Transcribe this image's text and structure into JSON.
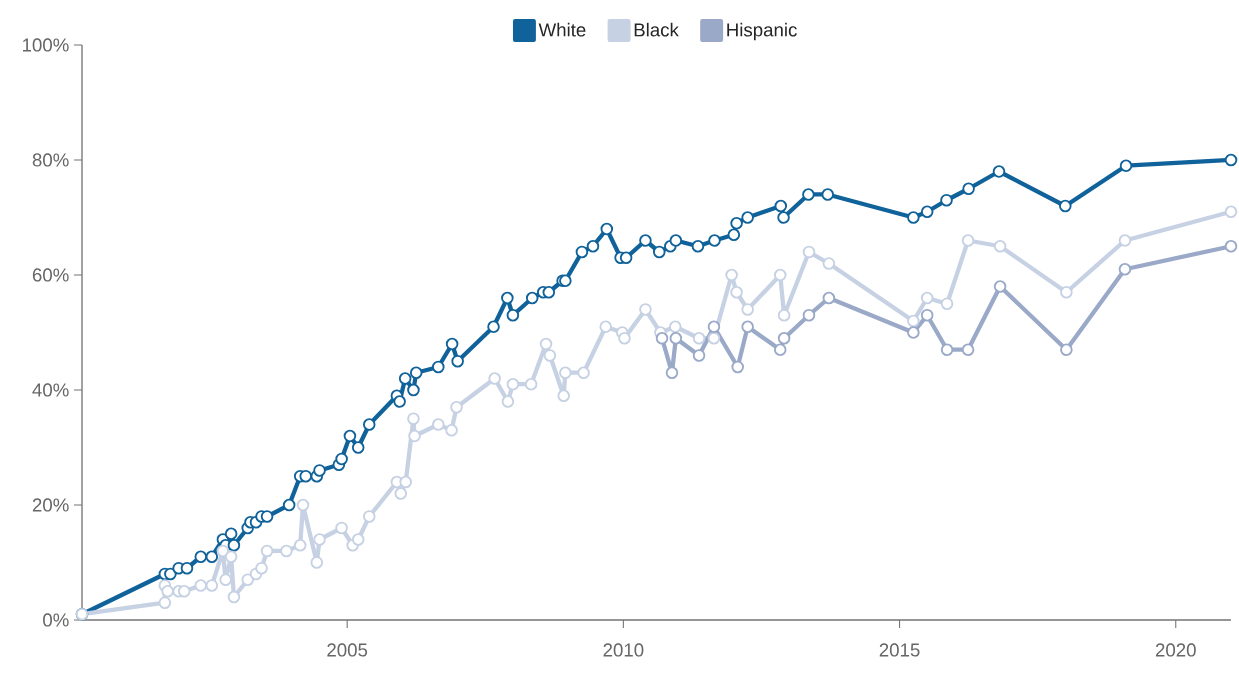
{
  "chart_data": {
    "type": "line",
    "xlim": [
      2000.2,
      2021.0
    ],
    "ylim": [
      0,
      100
    ],
    "xticks": [
      2005,
      2010,
      2015,
      2020
    ],
    "yticks": [
      {
        "value": 0,
        "label": "0%"
      },
      {
        "value": 20,
        "label": "20%"
      },
      {
        "value": 40,
        "label": "40%"
      },
      {
        "value": 60,
        "label": "60%"
      },
      {
        "value": 80,
        "label": "80%"
      },
      {
        "value": 100,
        "label": "100%"
      }
    ],
    "grid": false,
    "legend": "top",
    "marker": "circle",
    "line_style": "solid",
    "series": [
      {
        "name": "White",
        "color": "#10629a",
        "x": [
          2000.2,
          2001.7,
          2001.8,
          2001.95,
          2002.1,
          2002.35,
          2002.55,
          2002.75,
          2002.8,
          2002.9,
          2002.95,
          2003.2,
          2003.25,
          2003.35,
          2003.45,
          2003.55,
          2003.95,
          2004.15,
          2004.25,
          2004.45,
          2004.5,
          2004.85,
          2004.9,
          2005.05,
          2005.2,
          2005.4,
          2005.9,
          2005.95,
          2006.05,
          2006.2,
          2006.25,
          2006.65,
          2006.9,
          2007.0,
          2007.65,
          2007.9,
          2008.0,
          2008.35,
          2008.55,
          2008.65,
          2008.9,
          2008.95,
          2009.25,
          2009.45,
          2009.7,
          2009.95,
          2010.05,
          2010.4,
          2010.65,
          2010.85,
          2010.95,
          2011.35,
          2011.65,
          2012.0,
          2012.05,
          2012.25,
          2012.85,
          2012.9,
          2013.35,
          2013.7,
          2015.25,
          2015.5,
          2015.85,
          2016.25,
          2016.8,
          2018.0,
          2019.1,
          2021.0
        ],
        "values": [
          1,
          8,
          8,
          9,
          9,
          11,
          11,
          14,
          13,
          15,
          13,
          16,
          17,
          17,
          18,
          18,
          20,
          25,
          25,
          25,
          26,
          27,
          28,
          32,
          30,
          34,
          39,
          38,
          42,
          40,
          43,
          44,
          48,
          45,
          51,
          56,
          53,
          56,
          57,
          57,
          59,
          59,
          64,
          65,
          68,
          63,
          63,
          66,
          64,
          65,
          66,
          65,
          66,
          67,
          69,
          70,
          72,
          70,
          74,
          74,
          70,
          71,
          73,
          75,
          78,
          72,
          79,
          80
        ]
      },
      {
        "name": "Black",
        "color": "#c6d1e3",
        "x": [
          2000.2,
          2001.7,
          2001.7,
          2001.75,
          2001.95,
          2002.05,
          2002.35,
          2002.55,
          2002.75,
          2002.8,
          2002.9,
          2002.95,
          2003.2,
          2003.35,
          2003.45,
          2003.55,
          2003.9,
          2004.15,
          2004.2,
          2004.45,
          2004.5,
          2004.9,
          2005.1,
          2005.2,
          2005.4,
          2005.9,
          2005.97,
          2006.06,
          2006.2,
          2006.22,
          2006.65,
          2006.89,
          2006.98,
          2007.67,
          2007.91,
          2008.0,
          2008.33,
          2008.6,
          2008.67,
          2008.92,
          2008.95,
          2009.28,
          2009.68,
          2009.98,
          2010.02,
          2010.4,
          2010.67,
          2010.94,
          2011.37,
          2011.64,
          2011.96,
          2012.05,
          2012.25,
          2012.84,
          2012.91,
          2013.36,
          2013.72,
          2015.25,
          2015.5,
          2015.86,
          2016.24,
          2016.82,
          2018.02,
          2019.08,
          2021.0
        ],
        "values": [
          1,
          3,
          6,
          5,
          5,
          5,
          6,
          6,
          12,
          7,
          11,
          4,
          7,
          8,
          9,
          12,
          12,
          13,
          20,
          10,
          14,
          16,
          13,
          14,
          18,
          24,
          22,
          24,
          35,
          32,
          34,
          33,
          37,
          42,
          38,
          41,
          41,
          48,
          46,
          39,
          43,
          43,
          51,
          50,
          49,
          54,
          50,
          51,
          49,
          49,
          60,
          57,
          54,
          60,
          53,
          64,
          62,
          52,
          56,
          55,
          66,
          65,
          57,
          66,
          71
        ]
      },
      {
        "name": "Hispanic",
        "color": "#9aa9c8",
        "x": [
          2010.7,
          2010.88,
          2010.95,
          2011.37,
          2011.64,
          2012.07,
          2012.25,
          2012.84,
          2012.91,
          2013.36,
          2013.72,
          2015.25,
          2015.5,
          2015.86,
          2016.24,
          2016.82,
          2018.02,
          2019.08,
          2021.0
        ],
        "values": [
          49,
          43,
          49,
          46,
          51,
          44,
          51,
          47,
          49,
          53,
          56,
          50,
          53,
          47,
          47,
          58,
          47,
          61,
          65
        ]
      }
    ]
  }
}
